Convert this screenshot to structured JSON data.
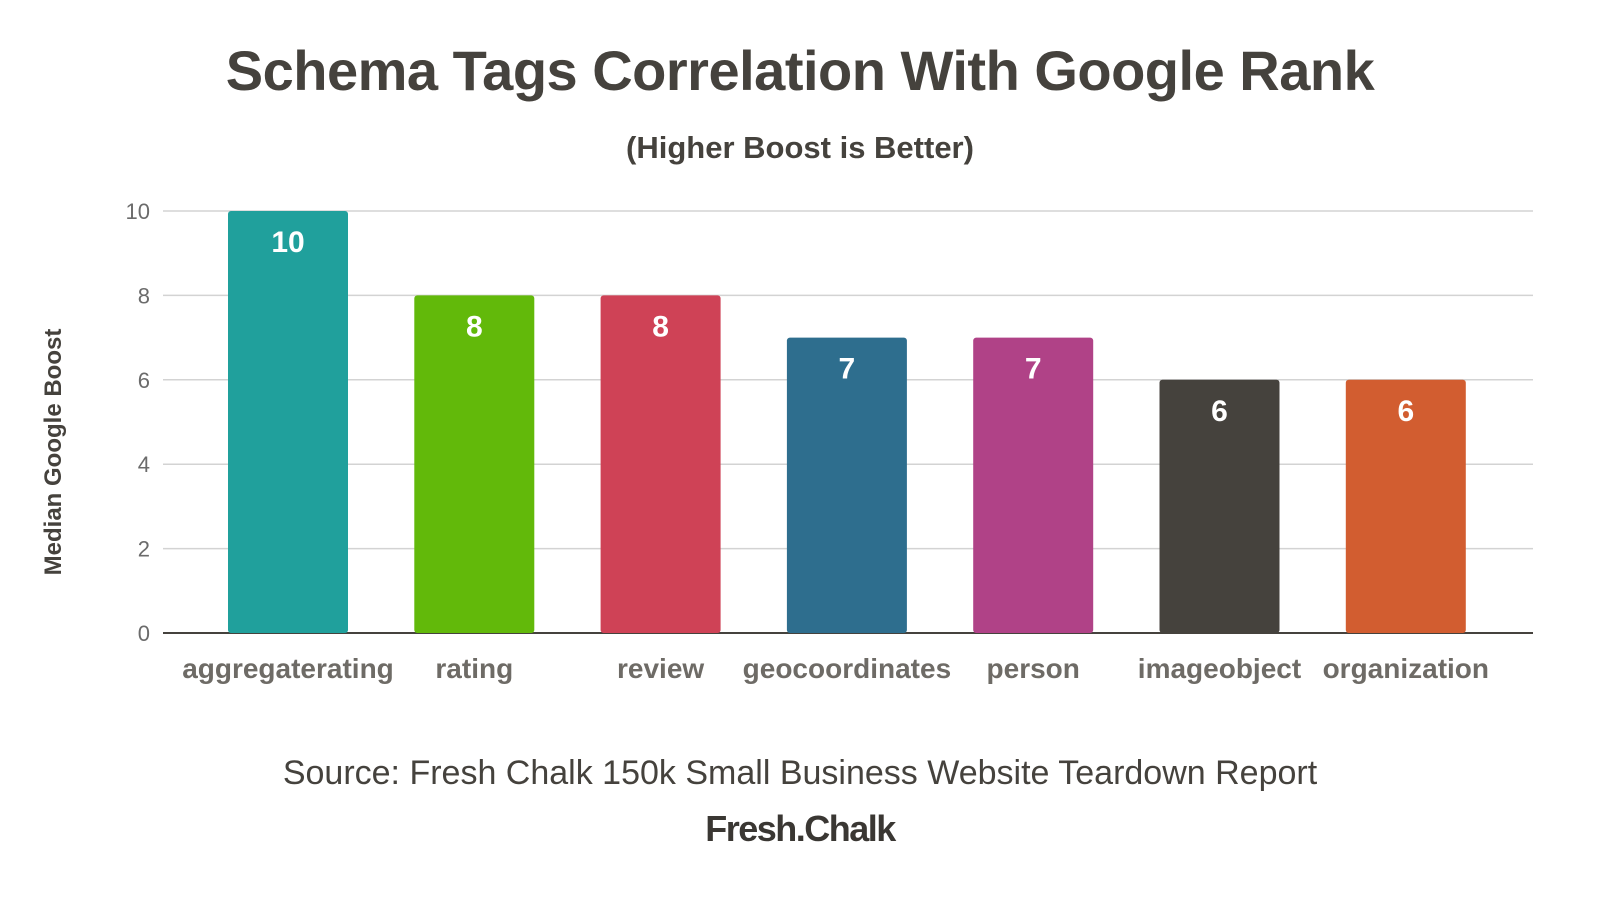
{
  "chart_data": {
    "type": "bar",
    "title": "Schema Tags Correlation With Google Rank",
    "subtitle": "(Higher Boost is Better)",
    "xlabel": "",
    "ylabel": "Median Google Boost",
    "categories": [
      "aggregaterating",
      "rating",
      "review",
      "geocoordinates",
      "person",
      "imageobject",
      "organization"
    ],
    "values": [
      10,
      8,
      8,
      7,
      7,
      6,
      6
    ],
    "data_labels": [
      "10",
      "8",
      "8",
      "7",
      "7",
      "6",
      "6"
    ],
    "colors": [
      "#20a09c",
      "#62b90a",
      "#cf4256",
      "#2e6e8e",
      "#b04287",
      "#45423d",
      "#d25d30"
    ],
    "ylim": [
      0,
      10
    ],
    "yticks": [
      "0",
      "2",
      "4",
      "6",
      "8",
      "10"
    ],
    "grid": true,
    "legend": "none"
  },
  "source": "Source: Fresh Chalk 150k Small Business Website Teardown Report",
  "logo_text": "Fresh.Chalk"
}
